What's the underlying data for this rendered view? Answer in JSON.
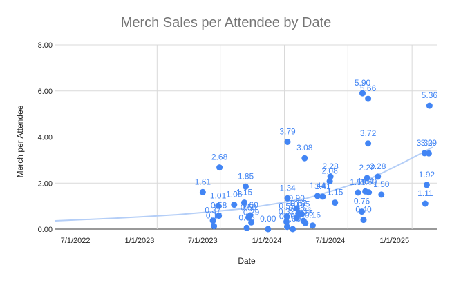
{
  "chart_data": {
    "type": "scatter",
    "title": "Merch Sales per Attendee by Date",
    "xlabel": "Date",
    "ylabel": "Merch per Attendee",
    "x_ticks": [
      "7/1/2022",
      "1/1/2023",
      "7/1/2023",
      "1/1/2024",
      "7/1/2024",
      "1/1/2025"
    ],
    "y_ticks": [
      "0.00",
      "2.00",
      "4.00",
      "6.00",
      "8.00"
    ],
    "xlim": [
      "2022-03-15",
      "2025-03-15"
    ],
    "ylim": [
      0,
      8
    ],
    "grid": true,
    "legend": "none",
    "colors": {
      "points": "#4285f4",
      "labels": "#4285f4",
      "trendline": "#b4cef7",
      "grid": "#d9d9d9",
      "title": "#757575",
      "axis_text": "#222222"
    },
    "trendline": {
      "type": "exponential",
      "points": [
        [
          "2022-03-15",
          0.36
        ],
        [
          "2022-09-01",
          0.47
        ],
        [
          "2023-03-01",
          0.63
        ],
        [
          "2023-09-01",
          0.88
        ],
        [
          "2024-03-01",
          1.32
        ],
        [
          "2024-09-01",
          2.18
        ],
        [
          "2025-03-01",
          3.56
        ]
      ]
    },
    "series": [
      {
        "points": [
          {
            "x": "2023-05-12",
            "y": 1.61,
            "label": "1.61"
          },
          {
            "x": "2023-06-10",
            "y": 0.37,
            "label": "0.37"
          },
          {
            "x": "2023-06-13",
            "y": 0.13,
            "label": "0.13"
          },
          {
            "x": "2023-06-25",
            "y": 1.01,
            "label": "1.01"
          },
          {
            "x": "2023-06-27",
            "y": 0.58,
            "label": "0.58"
          },
          {
            "x": "2023-06-29",
            "y": 2.68,
            "label": "2.68"
          },
          {
            "x": "2023-08-10",
            "y": 1.06,
            "label": "1.06"
          },
          {
            "x": "2023-09-08",
            "y": 1.15,
            "label": "1.15"
          },
          {
            "x": "2023-09-12",
            "y": 1.85,
            "label": "1.85"
          },
          {
            "x": "2023-09-15",
            "y": 0.05,
            "label": "0.05"
          },
          {
            "x": "2023-09-20",
            "y": 0.5,
            "label": "0.50"
          },
          {
            "x": "2023-09-25",
            "y": 0.6,
            "label": "0.60"
          },
          {
            "x": "2023-09-28",
            "y": 0.29,
            "label": "0.29"
          },
          {
            "x": "2023-11-15",
            "y": 0.0,
            "label": "0.00"
          },
          {
            "x": "2024-01-10",
            "y": 3.79,
            "label": "3.79"
          },
          {
            "x": "2024-01-10",
            "y": 1.34,
            "label": "1.34"
          },
          {
            "x": "2024-01-08",
            "y": 0.55,
            "label": "0.55"
          },
          {
            "x": "2024-01-07",
            "y": 0.32,
            "label": "0.32"
          },
          {
            "x": "2024-01-09",
            "y": 0.1,
            "label": "0.10"
          },
          {
            "x": "2024-01-25",
            "y": 0.0,
            "label": "0.00"
          },
          {
            "x": "2024-02-05",
            "y": 0.9,
            "label": "0.90"
          },
          {
            "x": "2024-02-10",
            "y": 0.67,
            "label": "0.67"
          },
          {
            "x": "2024-02-05",
            "y": 0.48,
            "label": "0.48"
          },
          {
            "x": "2024-02-20",
            "y": 0.65,
            "label": "0.65"
          },
          {
            "x": "2024-02-25",
            "y": 0.36,
            "label": "0.36"
          },
          {
            "x": "2024-03-01",
            "y": 0.26,
            "label": "0.26"
          },
          {
            "x": "2024-02-28",
            "y": 3.08,
            "label": "3.08"
          },
          {
            "x": "2024-03-22",
            "y": 0.16,
            "label": "0.16"
          },
          {
            "x": "2024-04-05",
            "y": 1.44,
            "label": "1.44"
          },
          {
            "x": "2024-04-20",
            "y": 1.41,
            "label": "1.41"
          },
          {
            "x": "2024-05-12",
            "y": 2.28,
            "label": "2.28"
          },
          {
            "x": "2024-05-10",
            "y": 2.08,
            "label": "2.08"
          },
          {
            "x": "2024-05-25",
            "y": 1.15,
            "label": "1.15"
          },
          {
            "x": "2024-07-30",
            "y": 1.59,
            "label": "1.59"
          },
          {
            "x": "2024-08-10",
            "y": 0.76,
            "label": "0.76"
          },
          {
            "x": "2024-08-15",
            "y": 0.4,
            "label": "0.40"
          },
          {
            "x": "2024-08-12",
            "y": 5.9,
            "label": "5.90"
          },
          {
            "x": "2024-08-20",
            "y": 1.64,
            "label": "1.64"
          },
          {
            "x": "2024-08-25",
            "y": 2.22,
            "label": "2.22"
          },
          {
            "x": "2024-08-28",
            "y": 5.66,
            "label": "5.66"
          },
          {
            "x": "2024-08-28",
            "y": 3.72,
            "label": "3.72"
          },
          {
            "x": "2024-08-30",
            "y": 1.6,
            "label": "1.60"
          },
          {
            "x": "2024-09-25",
            "y": 2.28,
            "label": "2.28"
          },
          {
            "x": "2024-10-05",
            "y": 1.5,
            "label": "1.50"
          },
          {
            "x": "2025-02-06",
            "y": 3.3,
            "label": "3.30"
          },
          {
            "x": "2025-02-18",
            "y": 3.29,
            "label": "3.29"
          },
          {
            "x": "2025-02-12",
            "y": 1.92,
            "label": "1.92"
          },
          {
            "x": "2025-02-08",
            "y": 1.11,
            "label": "1.11"
          },
          {
            "x": "2025-02-20",
            "y": 5.36,
            "label": "5.36"
          }
        ]
      }
    ]
  }
}
